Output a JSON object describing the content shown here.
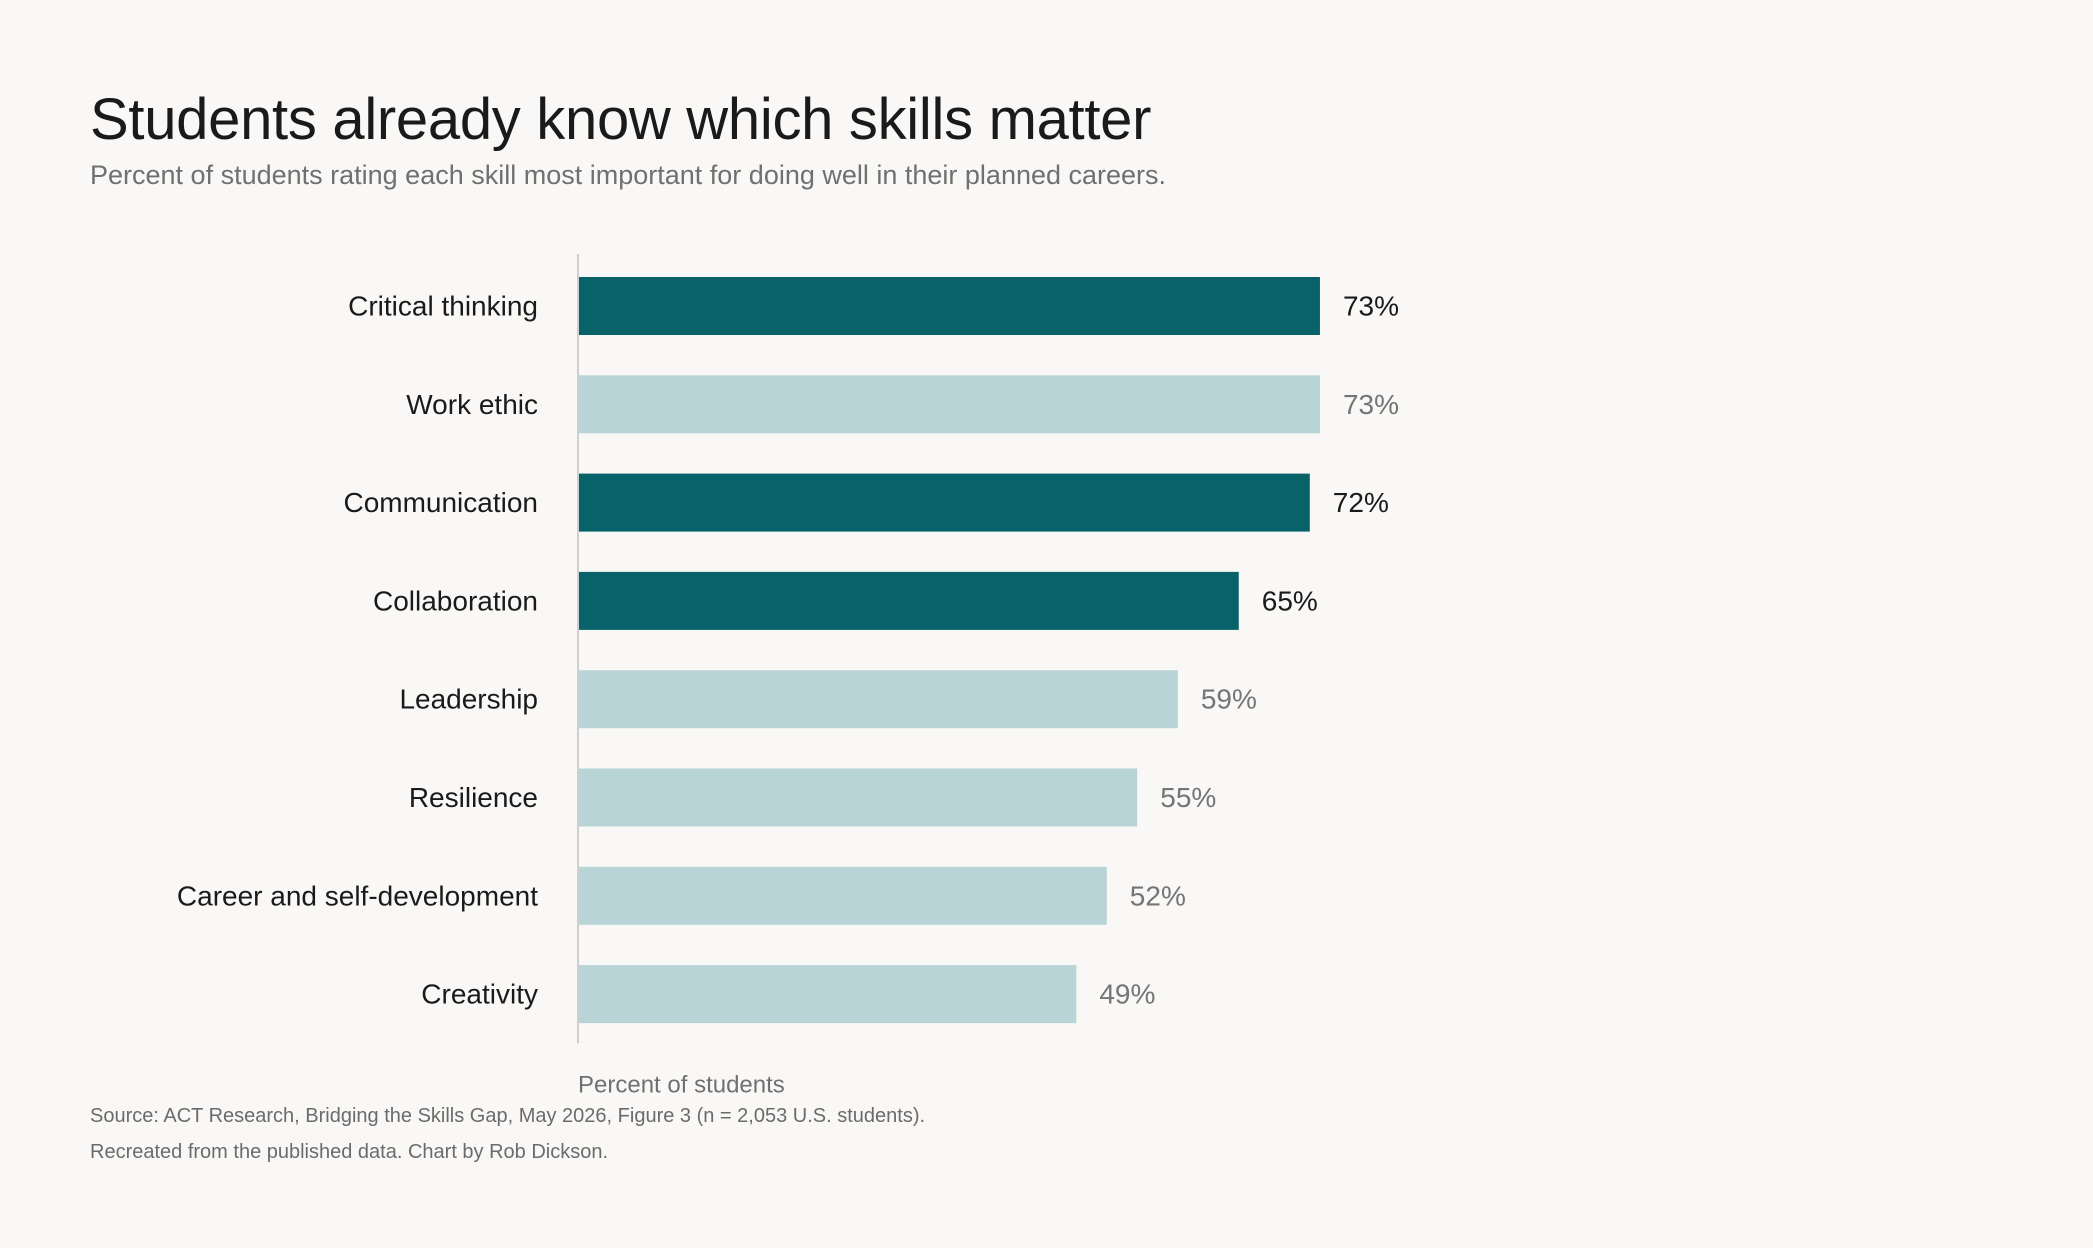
{
  "title": "Students already know which skills matter",
  "subtitle": "Percent of students rating each skill most important for doing well in their planned careers.",
  "source": "Source: ACT Research, Bridging the Skills Gap, May 2026, Figure 3 (n = 2,053 U.S. students).",
  "credit": "Recreated from the published data. Chart by Rob Dickson.",
  "colors": {
    "highlight": "#086269",
    "muted": "#b8d4d7",
    "highlight_label": "#1a1a1a",
    "muted_label": "#757575",
    "category_label": "#1a1a1a",
    "axis_line": "#cfcfcf",
    "axis_title": "#707070"
  },
  "chart_data": {
    "type": "bar",
    "orientation": "horizontal",
    "categories": [
      "Critical thinking",
      "Work ethic",
      "Communication",
      "Collaboration",
      "Leadership",
      "Resilience",
      "Career and self-development",
      "Creativity"
    ],
    "values": [
      73,
      73,
      72,
      65,
      59,
      55,
      52,
      49
    ],
    "value_labels": [
      "73%",
      "73%",
      "72%",
      "65%",
      "59%",
      "55%",
      "52%",
      "49%"
    ],
    "highlighted": [
      true,
      false,
      true,
      true,
      false,
      false,
      false,
      false
    ],
    "xlabel": "Percent of students",
    "ylabel": "",
    "xlim": [
      0,
      100
    ],
    "grid": false,
    "legend": "none"
  }
}
